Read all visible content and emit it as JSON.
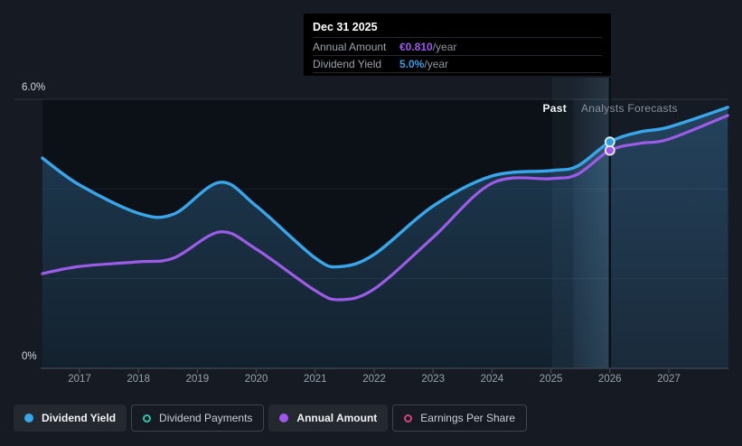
{
  "tooltip": {
    "date": "Dec 31 2025",
    "rows": [
      {
        "label": "Annual Amount",
        "value": "€0.810",
        "suffix": "/year",
        "color": "#a155ef"
      },
      {
        "label": "Dividend Yield",
        "value": "5.0%",
        "suffix": "/year",
        "color": "#2f9fe8"
      }
    ]
  },
  "axis": {
    "y_max_label": "6.0%",
    "y_min_label": "0%",
    "years": [
      "2017",
      "2018",
      "2019",
      "2020",
      "2021",
      "2022",
      "2023",
      "2024",
      "2025",
      "2026",
      "2027"
    ]
  },
  "annotations": {
    "past": "Past",
    "forecast": "Analysts Forecasts"
  },
  "legend": [
    {
      "label": "Dividend Yield",
      "type": "dot",
      "color": "#38a6ea",
      "active": true
    },
    {
      "label": "Dividend Payments",
      "type": "ring",
      "color": "#2cc3ac",
      "active": false
    },
    {
      "label": "Annual Amount",
      "type": "dot",
      "color": "#a155ef",
      "active": true
    },
    {
      "label": "Earnings Per Share",
      "type": "ring",
      "color": "#d4437b",
      "active": false
    }
  ],
  "chart_data": {
    "type": "line",
    "title": "Dividend yield history and forecast",
    "xlim": [
      2016.37,
      2028.01
    ],
    "x_ticks": [
      2017,
      2018,
      2019,
      2020,
      2021,
      2022,
      2023,
      2024,
      2025,
      2026,
      2027
    ],
    "ylim_percent": [
      0,
      6
    ],
    "ylim_amount_eur": [
      0,
      1.0
    ],
    "gridlines_percent": [
      0,
      2,
      4,
      6
    ],
    "grid_labeled": [
      "6.0%",
      "0%"
    ],
    "past_forecast_boundary_x": 2025.38,
    "highlight_band_start_x": 2025.02,
    "hover_x": 2026.0,
    "legend_position": "bottom",
    "x": [
      2016.37,
      2017,
      2018,
      2018.6,
      2019.38,
      2020,
      2021,
      2021.42,
      2022,
      2023,
      2024,
      2025,
      2025.45,
      2026,
      2026.5,
      2027,
      2028
    ],
    "series": [
      {
        "name": "Dividend Yield",
        "unit": "%",
        "axis": "percent",
        "color": "#38a6ea",
        "values": [
          4.69,
          4.09,
          3.46,
          3.44,
          4.15,
          3.62,
          2.46,
          2.27,
          2.54,
          3.62,
          4.29,
          4.41,
          4.51,
          5.05,
          5.27,
          5.38,
          5.82
        ]
      },
      {
        "name": "Annual Amount",
        "unit": "EUR/year",
        "axis": "amount",
        "color": "#9d5ce8",
        "values": [
          0.352,
          0.379,
          0.396,
          0.41,
          0.507,
          0.443,
          0.289,
          0.255,
          0.295,
          0.487,
          0.688,
          0.705,
          0.721,
          0.81,
          0.836,
          0.852,
          0.94
        ]
      }
    ],
    "markers": [
      {
        "series": "Dividend Yield",
        "x": 2026.0,
        "y": 5.05,
        "fill": "#2f9fe0"
      },
      {
        "series": "Annual Amount",
        "x": 2026.0,
        "y": 0.81,
        "fill": "#a155ef"
      }
    ]
  }
}
